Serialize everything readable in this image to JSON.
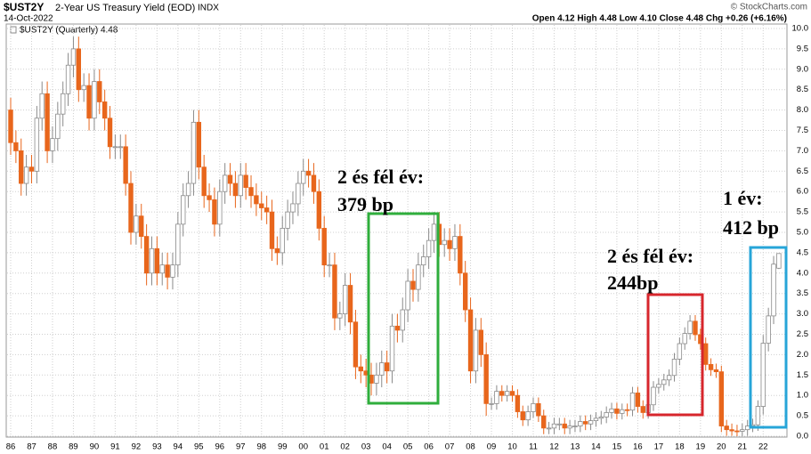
{
  "header": {
    "symbol": "$UST2Y",
    "name": "2-Year US Treasury Yield (EOD)",
    "exchange": "INDX",
    "date": "14-Oct-2022",
    "copyright": "© StockCharts.com",
    "quote": "Open 4.12  High 4.48  Low 4.10  Close 4.48  Chg +0.26 (+6.16%)"
  },
  "chart_data": {
    "type": "candlestick",
    "legend_label": "$UST2Y (Quarterly) 4.48",
    "up_color": "#ffffff",
    "up_edge": "#8a8a8a",
    "down_color": "#e8661c",
    "down_edge": "#e8661c",
    "grid": true,
    "ylim": [
      0,
      10
    ],
    "yticks": [
      {
        "value": 0,
        "label": "0.0"
      },
      0.5,
      {
        "value": 1,
        "label": "1.0"
      },
      1.5,
      {
        "value": 2,
        "label": "2.0"
      },
      2.5,
      {
        "value": 3,
        "label": "3.0"
      },
      3.5,
      {
        "value": 4,
        "label": "4.0"
      },
      4.5,
      {
        "value": 5,
        "label": "5.0"
      },
      5.5,
      {
        "value": 6,
        "label": "6.0"
      },
      6.5,
      {
        "value": 7,
        "label": "7.0"
      },
      7.5,
      {
        "value": 8,
        "label": "8.0"
      },
      8.5,
      {
        "value": 9,
        "label": "9.0"
      },
      9.5,
      {
        "value": 10,
        "label": "10.0"
      }
    ],
    "categories": [
      "86",
      null,
      null,
      null,
      "87",
      null,
      null,
      null,
      "88",
      null,
      null,
      null,
      "89",
      null,
      null,
      null,
      "90",
      null,
      null,
      null,
      "91",
      null,
      null,
      null,
      "92",
      null,
      null,
      null,
      "93",
      null,
      null,
      null,
      "94",
      null,
      null,
      null,
      "95",
      null,
      null,
      null,
      "96",
      null,
      null,
      null,
      "97",
      null,
      null,
      null,
      "98",
      null,
      null,
      null,
      "99",
      null,
      null,
      null,
      "00",
      null,
      null,
      null,
      "01",
      null,
      null,
      null,
      "02",
      null,
      null,
      null,
      "03",
      null,
      null,
      null,
      "04",
      null,
      null,
      null,
      "05",
      null,
      null,
      null,
      "06",
      null,
      null,
      null,
      "07",
      null,
      null,
      null,
      "08",
      null,
      null,
      null,
      "09",
      null,
      null,
      null,
      "10",
      null,
      null,
      null,
      "11",
      null,
      null,
      null,
      "12",
      null,
      null,
      null,
      "13",
      null,
      null,
      null,
      "14",
      null,
      null,
      null,
      "15",
      null,
      null,
      null,
      "16",
      null,
      null,
      null,
      "17",
      null,
      null,
      null,
      "18",
      null,
      null,
      null,
      "19",
      null,
      null,
      null,
      "20",
      null,
      null,
      null,
      "21",
      null,
      null,
      null,
      "22",
      null,
      null,
      null
    ],
    "open": [
      8.0,
      7.2,
      7.0,
      6.2,
      6.6,
      6.5,
      7.8,
      8.4,
      7.0,
      7.3,
      7.9,
      8.4,
      9.1,
      9.5,
      8.5,
      8.6,
      7.8,
      8.7,
      8.2,
      7.8,
      7.1,
      7.1,
      7.1,
      6.2,
      5.0,
      5.4,
      4.9,
      4.0,
      4.6,
      4.0,
      4.2,
      3.9,
      4.2,
      5.2,
      5.9,
      6.2,
      7.7,
      6.6,
      5.9,
      5.8,
      5.2,
      6.0,
      6.4,
      6.2,
      5.9,
      6.4,
      6.1,
      5.9,
      5.7,
      5.6,
      5.5,
      4.6,
      4.5,
      5.1,
      5.5,
      5.7,
      6.2,
      6.5,
      6.4,
      6.0,
      5.1,
      4.2,
      4.2,
      2.9,
      3.0,
      3.7,
      2.8,
      1.7,
      1.6,
      1.5,
      1.3,
      1.5,
      1.8,
      1.6,
      2.7,
      2.6,
      3.1,
      3.8,
      3.6,
      4.2,
      4.4,
      4.8,
      5.2,
      4.7,
      4.8,
      4.6,
      4.9,
      4.0,
      3.1,
      1.6,
      2.6,
      2.0,
      0.8,
      0.8,
      1.1,
      1.0,
      1.1,
      1.0,
      0.6,
      0.4,
      0.6,
      0.8,
      0.5,
      0.2,
      0.2,
      0.3,
      0.3,
      0.2,
      0.25,
      0.25,
      0.36,
      0.3,
      0.38,
      0.44,
      0.47,
      0.58,
      0.67,
      0.56,
      0.65,
      0.64,
      1.06,
      0.73,
      0.58,
      0.77,
      1.2,
      1.27,
      1.38,
      1.49,
      1.89,
      2.27,
      2.52,
      2.82,
      2.49,
      2.27,
      1.76,
      1.63,
      1.58,
      0.25,
      0.16,
      0.13,
      0.12,
      0.16,
      0.25,
      0.28,
      0.73,
      2.28,
      2.95,
      4.12
    ],
    "high": [
      8.3,
      7.5,
      7.3,
      6.9,
      6.9,
      8.1,
      8.7,
      8.7,
      7.6,
      8.2,
      8.7,
      9.4,
      9.8,
      9.8,
      8.9,
      8.9,
      9.0,
      9.0,
      8.5,
      8.1,
      7.4,
      7.4,
      7.4,
      6.5,
      5.7,
      5.7,
      5.2,
      4.9,
      4.9,
      4.5,
      4.5,
      4.5,
      5.5,
      6.2,
      6.5,
      8.0,
      8.0,
      6.9,
      6.2,
      6.1,
      6.3,
      6.7,
      6.7,
      6.5,
      6.7,
      6.7,
      6.4,
      6.2,
      6.0,
      5.9,
      5.8,
      4.9,
      5.4,
      5.8,
      6.0,
      6.5,
      6.8,
      6.8,
      6.7,
      6.3,
      5.4,
      4.5,
      4.5,
      3.3,
      4.0,
      4.0,
      3.1,
      2.0,
      1.9,
      1.8,
      1.8,
      2.1,
      2.1,
      3.0,
      3.0,
      3.4,
      4.1,
      4.1,
      4.5,
      4.7,
      5.1,
      5.5,
      5.5,
      5.1,
      5.1,
      5.2,
      5.2,
      4.3,
      3.4,
      2.9,
      2.9,
      2.3,
      0.95,
      1.25,
      1.25,
      1.25,
      1.25,
      1.15,
      0.75,
      0.75,
      0.95,
      0.95,
      0.65,
      0.35,
      0.45,
      0.45,
      0.45,
      0.4,
      0.4,
      0.51,
      0.51,
      0.53,
      0.59,
      0.62,
      0.73,
      0.82,
      0.82,
      0.8,
      0.8,
      1.21,
      1.21,
      0.88,
      0.92,
      1.35,
      1.42,
      1.53,
      1.64,
      2.04,
      2.42,
      2.67,
      2.97,
      2.97,
      2.64,
      2.42,
      1.91,
      1.78,
      1.73,
      0.4,
      0.31,
      0.28,
      0.31,
      0.4,
      0.43,
      0.88,
      2.48,
      3.15,
      4.42,
      4.48
    ],
    "low": [
      6.9,
      6.7,
      5.9,
      5.9,
      6.2,
      6.2,
      7.5,
      6.7,
      6.7,
      7.0,
      7.6,
      8.1,
      8.8,
      8.2,
      8.2,
      7.5,
      7.5,
      7.9,
      7.5,
      6.8,
      6.8,
      6.8,
      5.9,
      4.7,
      4.7,
      4.6,
      3.7,
      3.7,
      3.7,
      3.7,
      3.6,
      3.6,
      3.9,
      4.9,
      5.6,
      5.9,
      6.3,
      5.6,
      5.5,
      4.9,
      4.9,
      5.7,
      5.9,
      5.6,
      5.6,
      5.8,
      5.6,
      5.4,
      5.3,
      5.2,
      4.3,
      4.2,
      4.2,
      4.8,
      5.2,
      5.4,
      5.9,
      6.1,
      5.7,
      4.8,
      3.9,
      3.9,
      2.6,
      2.6,
      2.7,
      2.5,
      1.4,
      1.3,
      1.2,
      1.0,
      1.0,
      1.2,
      1.3,
      1.3,
      2.3,
      2.3,
      2.8,
      3.3,
      3.3,
      3.9,
      4.1,
      4.5,
      4.4,
      4.4,
      4.3,
      4.3,
      3.7,
      2.8,
      1.3,
      1.3,
      1.7,
      0.5,
      0.65,
      0.65,
      0.85,
      0.85,
      0.85,
      0.45,
      0.25,
      0.25,
      0.45,
      0.35,
      0.05,
      0.05,
      0.05,
      0.15,
      0.05,
      0.05,
      0.1,
      0.1,
      0.15,
      0.15,
      0.23,
      0.29,
      0.32,
      0.43,
      0.41,
      0.41,
      0.49,
      0.49,
      0.58,
      0.43,
      0.43,
      0.62,
      1.05,
      1.12,
      1.23,
      1.34,
      1.74,
      2.12,
      2.37,
      2.34,
      2.12,
      1.61,
      1.48,
      1.43,
      0.1,
      0.01,
      0.01,
      0.0,
      0.0,
      0.01,
      0.1,
      0.13,
      0.53,
      2.08,
      2.75,
      4.1
    ],
    "close": [
      7.2,
      7.0,
      6.2,
      6.6,
      6.5,
      7.8,
      8.4,
      7.0,
      7.3,
      7.9,
      8.4,
      9.1,
      9.5,
      8.5,
      8.6,
      7.8,
      8.7,
      8.2,
      7.8,
      7.1,
      7.1,
      7.1,
      6.2,
      5.0,
      5.4,
      4.9,
      4.0,
      4.6,
      4.0,
      4.2,
      3.9,
      4.2,
      5.2,
      5.9,
      6.2,
      7.7,
      6.6,
      5.9,
      5.8,
      5.2,
      6.0,
      6.4,
      6.2,
      5.9,
      6.4,
      6.1,
      5.9,
      5.7,
      5.6,
      5.5,
      4.6,
      4.5,
      5.1,
      5.5,
      5.7,
      6.2,
      6.5,
      6.4,
      6.0,
      5.1,
      4.2,
      4.2,
      2.9,
      3.0,
      3.7,
      2.8,
      1.7,
      1.6,
      1.5,
      1.3,
      1.5,
      1.8,
      1.6,
      2.7,
      2.6,
      3.1,
      3.8,
      3.6,
      4.2,
      4.4,
      4.8,
      5.2,
      4.7,
      4.8,
      4.6,
      4.9,
      4.0,
      3.1,
      1.6,
      2.6,
      2.0,
      0.8,
      0.8,
      1.1,
      1.0,
      1.1,
      1.0,
      0.6,
      0.4,
      0.6,
      0.8,
      0.5,
      0.2,
      0.2,
      0.3,
      0.3,
      0.2,
      0.25,
      0.25,
      0.36,
      0.3,
      0.38,
      0.44,
      0.47,
      0.58,
      0.67,
      0.56,
      0.65,
      0.64,
      1.06,
      0.73,
      0.58,
      0.77,
      1.2,
      1.27,
      1.38,
      1.49,
      1.89,
      2.27,
      2.52,
      2.82,
      2.49,
      2.27,
      1.76,
      1.63,
      1.58,
      0.25,
      0.16,
      0.13,
      0.12,
      0.16,
      0.25,
      0.28,
      0.73,
      2.28,
      2.95,
      4.22,
      4.48
    ],
    "annotations": [
      {
        "line1": "2 és fél év:",
        "line2": "379 bp",
        "color": "#2fae3c"
      },
      {
        "line1": "2 és fél év:",
        "line2": "244bp",
        "color": "#d7262c"
      },
      {
        "line1": "1 év:",
        "line2": "412 bp",
        "color": "#27a5d8"
      }
    ]
  }
}
